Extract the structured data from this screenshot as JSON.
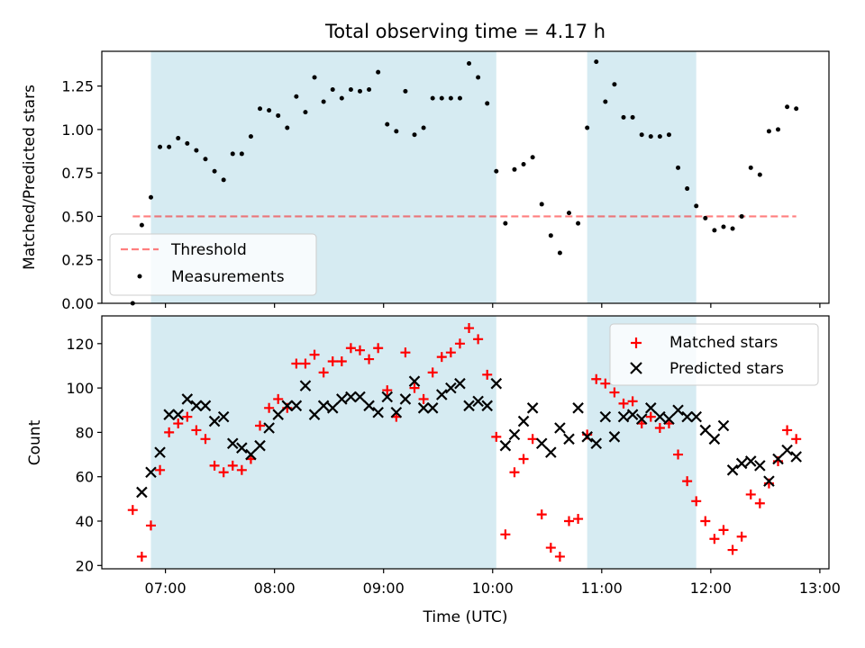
{
  "title": "Total observing time = 4.17 h",
  "colors": {
    "shade": "#add8e6",
    "threshold": "#ff0000",
    "measurement": "#000000",
    "matched": "#ff0000",
    "predicted": "#000000"
  },
  "chart_data": [
    {
      "type": "scatter",
      "panel": "top",
      "xlabel": "",
      "ylabel": "Matched/Predicted stars",
      "xlim": [
        "06:25",
        "13:05"
      ],
      "ylim": [
        0,
        1.45
      ],
      "yticks": [
        0,
        0.25,
        0.5,
        0.75,
        1.0,
        1.25
      ],
      "ytick_labels": [
        "0.00",
        "0.25",
        "0.50",
        "0.75",
        "1.00",
        "1.25"
      ],
      "shaded_intervals": [
        [
          "06:52",
          "10:02"
        ],
        [
          "10:52",
          "11:52"
        ]
      ],
      "legend": {
        "position": "lower-left",
        "entries": [
          "Threshold",
          "Measurements"
        ]
      },
      "threshold": {
        "name": "Threshold",
        "value": 0.5,
        "x_range": [
          "06:42",
          "12:47"
        ],
        "style": "dashed"
      },
      "series": [
        {
          "name": "Measurements",
          "x": [
            "06:42",
            "06:47",
            "06:52",
            "06:57",
            "07:02",
            "07:07",
            "07:12",
            "07:17",
            "07:22",
            "07:27",
            "07:32",
            "07:37",
            "07:42",
            "07:47",
            "07:52",
            "07:57",
            "08:02",
            "08:07",
            "08:12",
            "08:17",
            "08:22",
            "08:27",
            "08:32",
            "08:37",
            "08:42",
            "08:47",
            "08:52",
            "08:57",
            "09:02",
            "09:07",
            "09:12",
            "09:17",
            "09:22",
            "09:27",
            "09:32",
            "09:37",
            "09:42",
            "09:47",
            "09:52",
            "09:57",
            "10:02",
            "10:07",
            "10:12",
            "10:17",
            "10:22",
            "10:27",
            "10:32",
            "10:37",
            "10:42",
            "10:47",
            "10:52",
            "10:57",
            "11:02",
            "11:07",
            "11:12",
            "11:17",
            "11:22",
            "11:27",
            "11:32",
            "11:37",
            "11:42",
            "11:47",
            "11:52",
            "11:57",
            "12:02",
            "12:07",
            "12:12",
            "12:17",
            "12:22",
            "12:27",
            "12:32",
            "12:37",
            "12:42",
            "12:47"
          ],
          "y": [
            0.0,
            0.45,
            0.61,
            0.9,
            0.9,
            0.95,
            0.92,
            0.88,
            0.83,
            0.76,
            0.71,
            0.86,
            0.86,
            0.96,
            1.12,
            1.11,
            1.08,
            1.01,
            1.19,
            1.1,
            1.3,
            1.16,
            1.23,
            1.18,
            1.23,
            1.22,
            1.23,
            1.33,
            1.03,
            0.99,
            1.22,
            0.97,
            1.01,
            1.18,
            1.18,
            1.18,
            1.18,
            1.38,
            1.3,
            1.15,
            0.76,
            0.46,
            0.77,
            0.8,
            0.84,
            0.57,
            0.39,
            0.29,
            0.52,
            0.46,
            1.01,
            1.39,
            1.16,
            1.26,
            1.07,
            1.07,
            0.97,
            0.96,
            0.96,
            0.97,
            0.78,
            0.66,
            0.56,
            0.49,
            0.42,
            0.44,
            0.43,
            0.5,
            0.78,
            0.74,
            0.99,
            1.0,
            1.13,
            1.12
          ]
        }
      ]
    },
    {
      "type": "scatter",
      "panel": "bottom",
      "xlabel": "Time (UTC)",
      "ylabel": "Count",
      "xlim": [
        "06:25",
        "13:05"
      ],
      "ylim": [
        18.5,
        132.5
      ],
      "xticks": [
        "07:00",
        "08:00",
        "09:00",
        "10:00",
        "11:00",
        "12:00",
        "13:00"
      ],
      "yticks": [
        20,
        40,
        60,
        80,
        100,
        120
      ],
      "ytick_labels": [
        "20",
        "40",
        "60",
        "80",
        "100",
        "120"
      ],
      "shaded_intervals": [
        [
          "06:52",
          "10:02"
        ],
        [
          "10:52",
          "11:52"
        ]
      ],
      "legend": {
        "position": "top-right",
        "entries": [
          "Matched stars",
          "Predicted stars"
        ]
      },
      "series": [
        {
          "name": "Matched stars",
          "marker": "+",
          "x": [
            "06:42",
            "06:47",
            "06:52",
            "06:57",
            "07:02",
            "07:07",
            "07:12",
            "07:17",
            "07:22",
            "07:27",
            "07:32",
            "07:37",
            "07:42",
            "07:47",
            "07:52",
            "07:57",
            "08:02",
            "08:07",
            "08:12",
            "08:17",
            "08:22",
            "08:27",
            "08:32",
            "08:37",
            "08:42",
            "08:47",
            "08:52",
            "08:57",
            "09:02",
            "09:07",
            "09:12",
            "09:17",
            "09:22",
            "09:27",
            "09:32",
            "09:37",
            "09:42",
            "09:47",
            "09:52",
            "09:57",
            "10:02",
            "10:07",
            "10:12",
            "10:17",
            "10:22",
            "10:27",
            "10:32",
            "10:37",
            "10:42",
            "10:47",
            "10:52",
            "10:57",
            "11:02",
            "11:07",
            "11:12",
            "11:17",
            "11:22",
            "11:27",
            "11:32",
            "11:37",
            "11:42",
            "11:47",
            "11:52",
            "11:57",
            "12:02",
            "12:07",
            "12:12",
            "12:17",
            "12:22",
            "12:27",
            "12:32",
            "12:37",
            "12:42",
            "12:47"
          ],
          "y": [
            45,
            24,
            38,
            63,
            80,
            84,
            87,
            81,
            77,
            65,
            62,
            65,
            63,
            68,
            83,
            91,
            95,
            91,
            111,
            111,
            115,
            107,
            112,
            112,
            118,
            117,
            113,
            118,
            99,
            87,
            116,
            100,
            95,
            107,
            114,
            116,
            120,
            127,
            122,
            106,
            78,
            34,
            62,
            68,
            77,
            43,
            28,
            24,
            40,
            41,
            79,
            104,
            102,
            98,
            93,
            94,
            84,
            87,
            82,
            84,
            70,
            58,
            49,
            40,
            32,
            36,
            27,
            33,
            52,
            48,
            57,
            67,
            81,
            77
          ]
        },
        {
          "name": "Predicted stars",
          "marker": "x",
          "x": [
            "06:47",
            "06:52",
            "06:57",
            "07:02",
            "07:07",
            "07:12",
            "07:17",
            "07:22",
            "07:27",
            "07:32",
            "07:37",
            "07:42",
            "07:47",
            "07:52",
            "07:57",
            "08:02",
            "08:07",
            "08:12",
            "08:17",
            "08:22",
            "08:27",
            "08:32",
            "08:37",
            "08:42",
            "08:47",
            "08:52",
            "08:57",
            "09:02",
            "09:07",
            "09:12",
            "09:17",
            "09:22",
            "09:27",
            "09:32",
            "09:37",
            "09:42",
            "09:47",
            "09:52",
            "09:57",
            "10:02",
            "10:07",
            "10:12",
            "10:17",
            "10:22",
            "10:27",
            "10:32",
            "10:37",
            "10:42",
            "10:47",
            "10:52",
            "10:57",
            "11:02",
            "11:07",
            "11:12",
            "11:17",
            "11:22",
            "11:27",
            "11:32",
            "11:37",
            "11:42",
            "11:47",
            "11:52",
            "11:57",
            "12:02",
            "12:07",
            "12:12",
            "12:17",
            "12:22",
            "12:27",
            "12:32",
            "12:37",
            "12:42",
            "12:47"
          ],
          "y": [
            53,
            62,
            71,
            88,
            88,
            95,
            92,
            92,
            85,
            87,
            75,
            73,
            70,
            74,
            82,
            88,
            92,
            92,
            101,
            88,
            92,
            91,
            95,
            96,
            96,
            92,
            89,
            96,
            89,
            95,
            103,
            91,
            91,
            97,
            100,
            102,
            92,
            94,
            92,
            102,
            74,
            79,
            85,
            91,
            75,
            71,
            82,
            77,
            91,
            78,
            75,
            87,
            78,
            87,
            88,
            86,
            91,
            87,
            86,
            90,
            87,
            87,
            81,
            77,
            83,
            63,
            66,
            67,
            65,
            58,
            68,
            72,
            69
          ]
        }
      ]
    }
  ]
}
